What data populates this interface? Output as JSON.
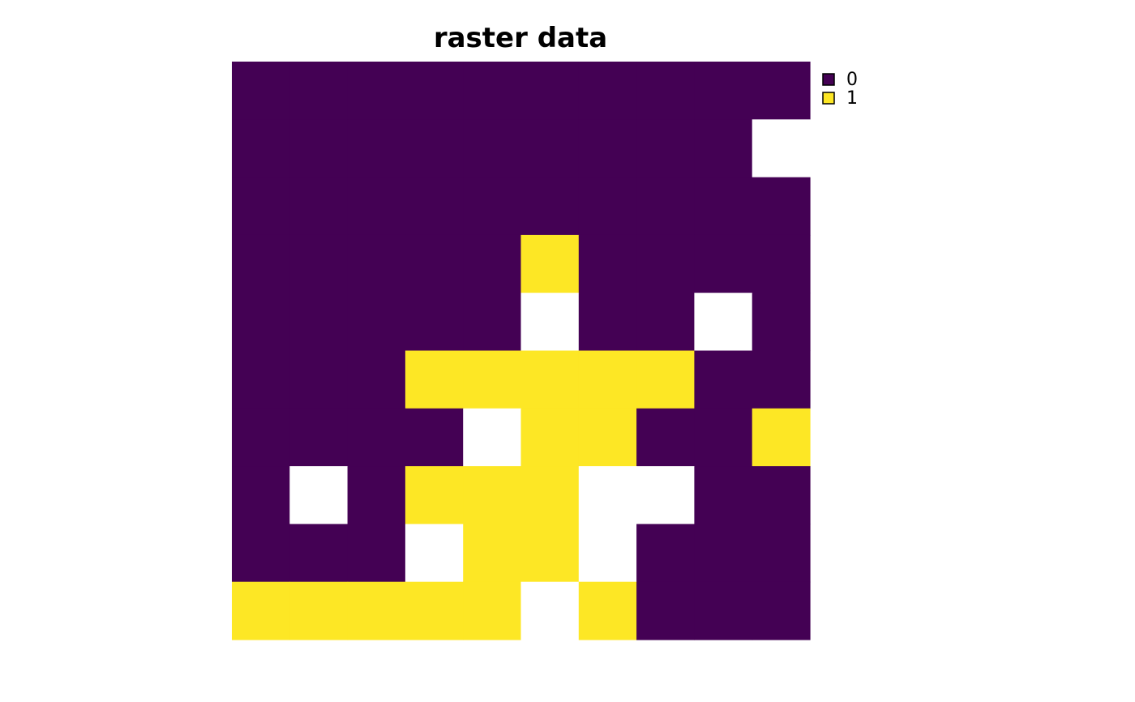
{
  "chart_data": {
    "type": "heatmap",
    "title": "raster data",
    "rows": 10,
    "cols": 10,
    "grid": [
      [
        0,
        0,
        0,
        0,
        0,
        0,
        0,
        0,
        0,
        0
      ],
      [
        0,
        0,
        0,
        0,
        0,
        0,
        0,
        0,
        0,
        null
      ],
      [
        0,
        0,
        0,
        0,
        0,
        0,
        0,
        0,
        0,
        0
      ],
      [
        0,
        0,
        0,
        0,
        0,
        1,
        0,
        0,
        0,
        0
      ],
      [
        0,
        0,
        0,
        0,
        0,
        null,
        0,
        0,
        null,
        0
      ],
      [
        0,
        0,
        0,
        1,
        1,
        1,
        1,
        1,
        0,
        0
      ],
      [
        0,
        0,
        0,
        0,
        null,
        1,
        1,
        0,
        0,
        1
      ],
      [
        0,
        null,
        0,
        1,
        1,
        1,
        null,
        null,
        0,
        0
      ],
      [
        0,
        0,
        0,
        null,
        1,
        1,
        null,
        0,
        0,
        0
      ],
      [
        1,
        1,
        1,
        1,
        1,
        null,
        1,
        0,
        0,
        0
      ]
    ],
    "missing_color": "#ffffff",
    "legend": {
      "placement": "top-right",
      "entries": [
        {
          "label": "0",
          "value": 0,
          "color": "#440154"
        },
        {
          "label": "1",
          "value": 1,
          "color": "#FDE725"
        }
      ]
    }
  }
}
